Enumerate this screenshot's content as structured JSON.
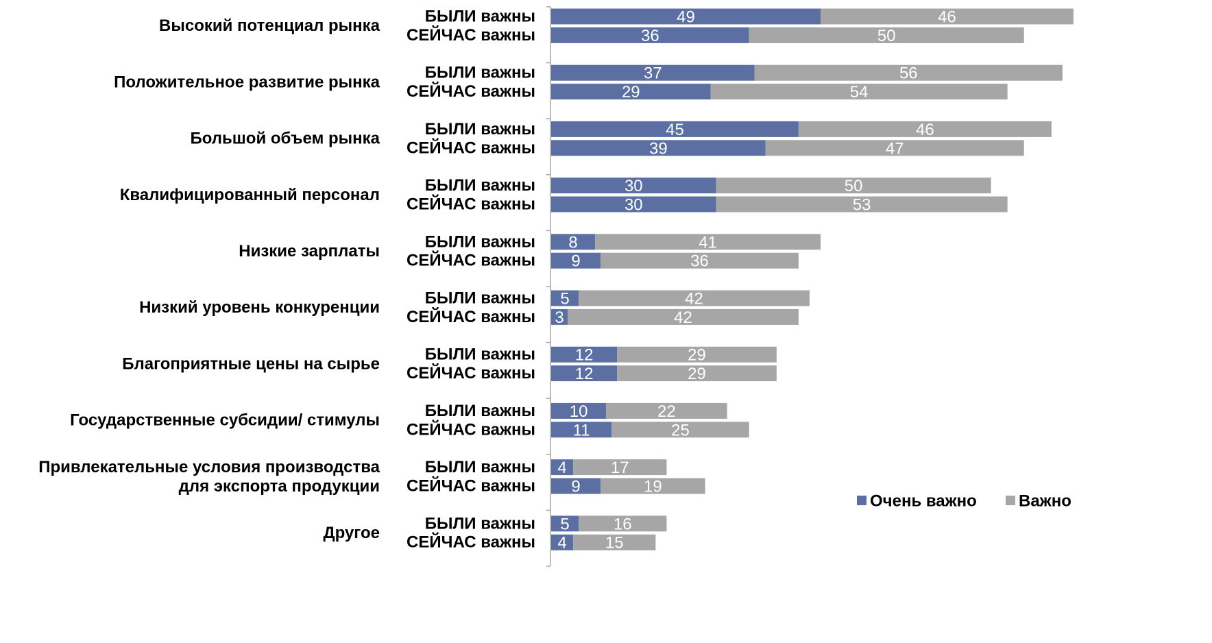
{
  "colors": {
    "very_important": "#5b6fa2",
    "important": "#a6a6a6",
    "axis": "#a6a6a6"
  },
  "chart_data": {
    "type": "bar",
    "orientation": "horizontal",
    "stacked": true,
    "title": "",
    "xlabel": "",
    "ylabel": "",
    "xlim": [
      0,
      100
    ],
    "grid": false,
    "legend_position": "bottom-right",
    "legend": [
      "Очень важно",
      "Важно"
    ],
    "series_names": [
      "Очень важно",
      "Важно"
    ],
    "row_labels": [
      "БЫЛИ важны",
      "СЕЙЧАС важны"
    ],
    "categories": [
      {
        "label_lines": [
          "Высокий потенциал рынка"
        ],
        "rows": [
          [
            49,
            46
          ],
          [
            36,
            50
          ]
        ]
      },
      {
        "label_lines": [
          "Положительное развитие рынка"
        ],
        "rows": [
          [
            37,
            56
          ],
          [
            29,
            54
          ]
        ]
      },
      {
        "label_lines": [
          "Большой объем рынка"
        ],
        "rows": [
          [
            45,
            46
          ],
          [
            39,
            47
          ]
        ]
      },
      {
        "label_lines": [
          "Квалифицированный персонал"
        ],
        "rows": [
          [
            30,
            50
          ],
          [
            30,
            53
          ]
        ]
      },
      {
        "label_lines": [
          "Низкие зарплаты"
        ],
        "rows": [
          [
            8,
            41
          ],
          [
            9,
            36
          ]
        ]
      },
      {
        "label_lines": [
          "Низкий уровень конкуренции"
        ],
        "rows": [
          [
            5,
            42
          ],
          [
            3,
            42
          ]
        ]
      },
      {
        "label_lines": [
          "Благоприятные цены на сырье"
        ],
        "rows": [
          [
            12,
            29
          ],
          [
            12,
            29
          ]
        ]
      },
      {
        "label_lines": [
          "Государственные субсидии/ стимулы"
        ],
        "rows": [
          [
            10,
            22
          ],
          [
            11,
            25
          ]
        ]
      },
      {
        "label_lines": [
          "Привлекательные условия производства",
          "для экспорта продукции"
        ],
        "rows": [
          [
            4,
            17
          ],
          [
            9,
            19
          ]
        ]
      },
      {
        "label_lines": [
          "Другое"
        ],
        "rows": [
          [
            5,
            16
          ],
          [
            4,
            15
          ]
        ]
      }
    ]
  }
}
